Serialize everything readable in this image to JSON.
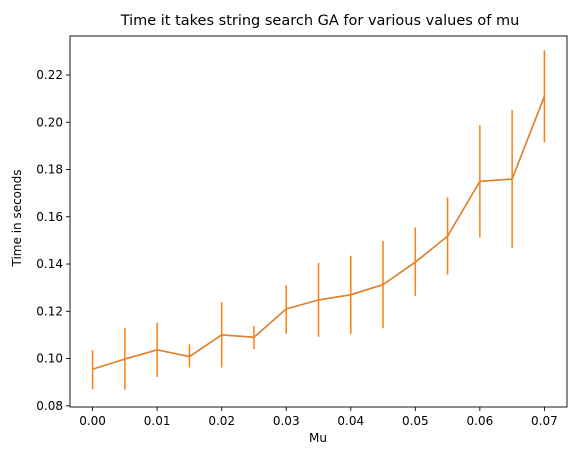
{
  "chart_data": {
    "type": "line",
    "title": "Time it takes string search GA for various values of mu",
    "xlabel": "Mu",
    "ylabel": "Time in seconds",
    "xlim": [
      -0.0035,
      0.0735
    ],
    "ylim": [
      0.0795,
      0.2365
    ],
    "x_ticks": [
      0.0,
      0.01,
      0.02,
      0.03,
      0.04,
      0.05,
      0.06,
      0.07
    ],
    "x_tick_labels": [
      "0.00",
      "0.01",
      "0.02",
      "0.03",
      "0.04",
      "0.05",
      "0.06",
      "0.07"
    ],
    "y_ticks": [
      0.08,
      0.1,
      0.12,
      0.14,
      0.16,
      0.18,
      0.2,
      0.22
    ],
    "y_tick_labels": [
      "0.08",
      "0.10",
      "0.12",
      "0.14",
      "0.16",
      "0.18",
      "0.20",
      "0.22"
    ],
    "grid": false,
    "colors": {
      "line": "#4a7db5",
      "overlay_line": "#ff7f0e",
      "error_bar": "#ff7f0e"
    },
    "series": [
      {
        "x": [
          0.0,
          0.005,
          0.01,
          0.015,
          0.02,
          0.025,
          0.03,
          0.035,
          0.04,
          0.045,
          0.05,
          0.055,
          0.06,
          0.065,
          0.07
        ],
        "y": [
          0.0955,
          0.0998,
          0.1037,
          0.1008,
          0.11,
          0.109,
          0.121,
          0.1248,
          0.127,
          0.1313,
          0.1408,
          0.1518,
          0.175,
          0.176,
          0.211
        ],
        "y_err_low": [
          0.087,
          0.0868,
          0.0922,
          0.0962,
          0.0962,
          0.104,
          0.1105,
          0.1092,
          0.1105,
          0.1128,
          0.1265,
          0.1355,
          0.1512,
          0.1468,
          0.1915
        ],
        "y_err_high": [
          0.1035,
          0.113,
          0.1152,
          0.106,
          0.1238,
          0.1138,
          0.131,
          0.1405,
          0.1435,
          0.1498,
          0.1555,
          0.1682,
          0.1988,
          0.2052,
          0.2305
        ]
      }
    ]
  }
}
